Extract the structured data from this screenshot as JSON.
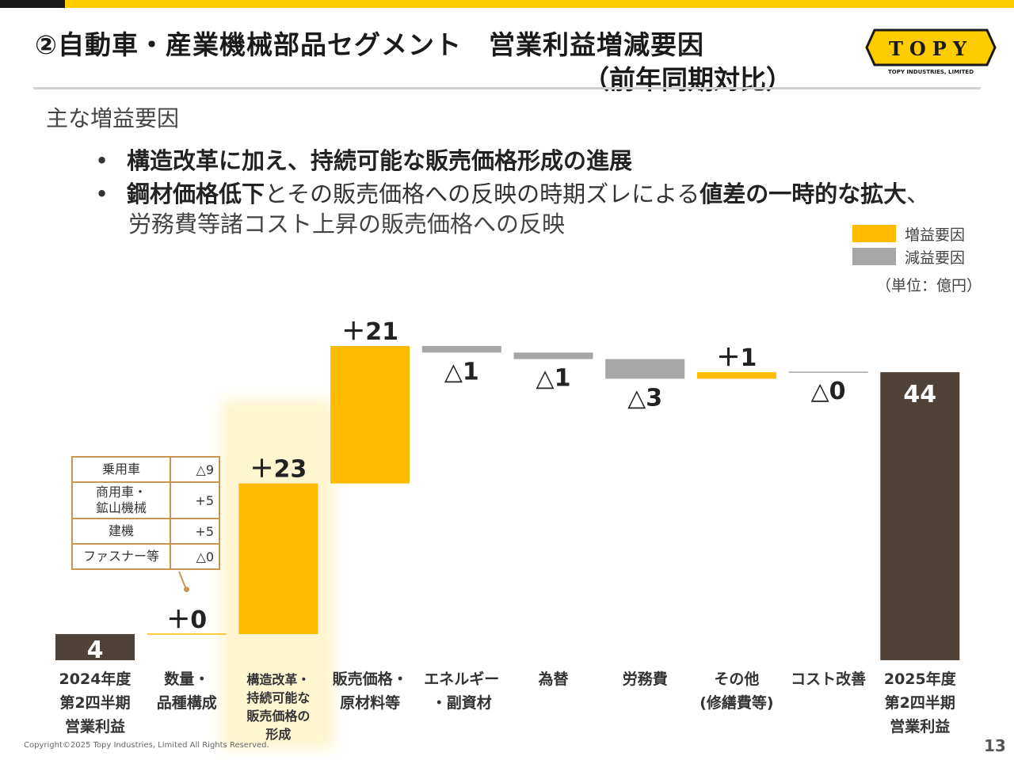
{
  "header": {
    "title": "②自動車・産業機械部品セグメント　営業利益増減要因",
    "subtitle": "（前年同期対比）",
    "logo_text": "TOPY",
    "logo_subtext": "TOPY INDUSTRIES, LIMITED"
  },
  "summary": {
    "heading": "主な増益要因",
    "bullet_marker": "•",
    "bullet1": "構造改革に加え、持続可能な販売価格形成の進展",
    "bullet2_bold1": "鋼材価格低下",
    "bullet2_text1": "とその販売価格への反映の時期ズレによる",
    "bullet2_bold2": "値差の一時的な拡大",
    "bullet2_text2": "、",
    "bullet2_line2": "労務費等諸コスト上昇の販売価格への反映"
  },
  "legend": {
    "increase": "増益要因",
    "decrease": "減益要因",
    "unit": "（単位：億円）"
  },
  "breakdown": [
    {
      "name": "乗用車",
      "value": "△9"
    },
    {
      "name": "商用車・\n鉱山機械",
      "value": "+5"
    },
    {
      "name": "建機",
      "value": "+5"
    },
    {
      "name": "ファスナー等",
      "value": "△0"
    }
  ],
  "chart_data": {
    "type": "waterfall",
    "title": "営業利益増減要因（前年同期対比）",
    "unit": "億円",
    "categories": [
      "2024年度\n第2四半期\n営業利益",
      "数量・\n品種構成",
      "構造改革・\n持続可能な\n販売価格の\n形成",
      "販売価格・\n原材料等",
      "エネルギー\n・副資材",
      "為替",
      "労務費",
      "その他\n(修繕費等)",
      "コスト改善",
      "2025年度\n第2四半期\n営業利益"
    ],
    "kinds": [
      "total",
      "increase",
      "increase",
      "increase",
      "decrease",
      "decrease",
      "decrease",
      "increase",
      "decrease",
      "total"
    ],
    "values": [
      4,
      0,
      23,
      21,
      -1,
      -1,
      -3,
      1,
      0,
      44
    ],
    "labels": [
      "4",
      "＋0",
      "＋23",
      "＋21",
      "△1",
      "△1",
      "△3",
      "＋1",
      "△0",
      "44"
    ],
    "colors": {
      "increase": "#ffbb00",
      "decrease": "#a6a6a6",
      "total": "#4f4238"
    }
  },
  "footer": {
    "copyright": "Copyright©2025 Topy Industries, Limited All Rights Reserved.",
    "page": "13"
  }
}
